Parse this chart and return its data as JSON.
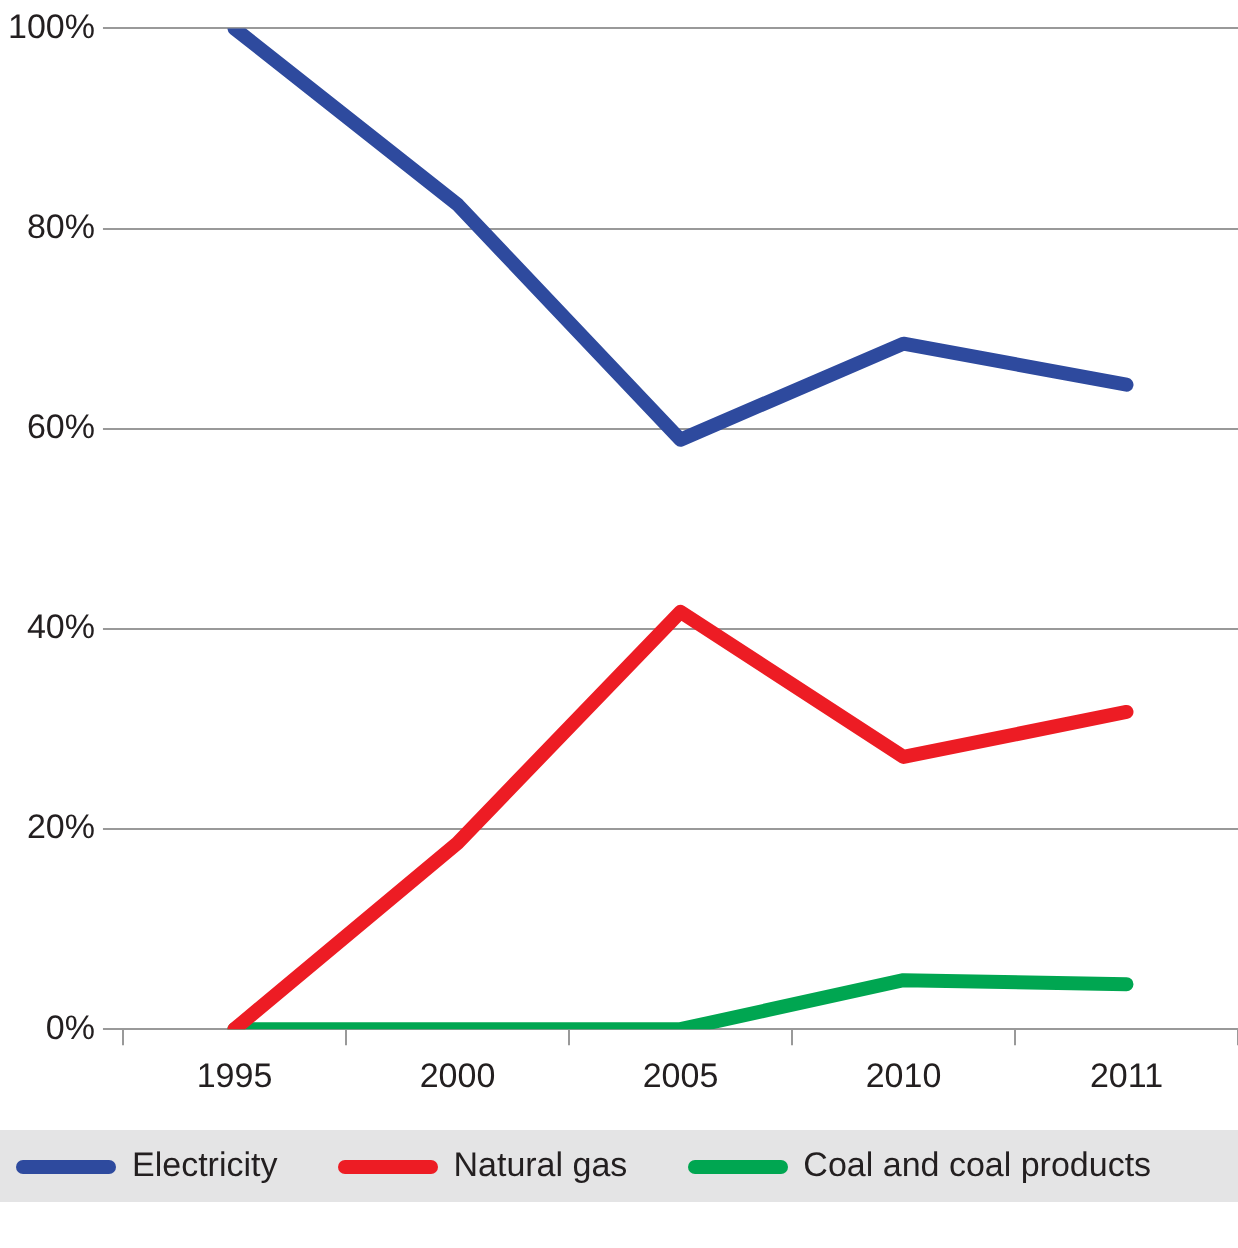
{
  "chart_data": {
    "type": "line",
    "categories": [
      "1995",
      "2000",
      "2005",
      "2010",
      "2011"
    ],
    "series": [
      {
        "name": "Electricity",
        "color": "#2e4a9e",
        "values": [
          100,
          82.4,
          58.9,
          68.5,
          64.4
        ]
      },
      {
        "name": "Natural gas",
        "color": "#ed1c24",
        "values": [
          0,
          18.6,
          41.7,
          27.2,
          31.7
        ]
      },
      {
        "name": "Coal and coal products",
        "color": "#00a651",
        "values": [
          0,
          0,
          0,
          4.9,
          4.5
        ]
      }
    ],
    "ylim": [
      0,
      100
    ],
    "yticks": [
      {
        "value": 0,
        "label": "0%"
      },
      {
        "value": 20,
        "label": "20%"
      },
      {
        "value": 40,
        "label": "40%"
      },
      {
        "value": 60,
        "label": "60%"
      },
      {
        "value": 80,
        "label": "80%"
      },
      {
        "value": 100,
        "label": "100%"
      }
    ],
    "grid": "y",
    "legend": "bottom",
    "marker": "none",
    "line_style": "solid"
  }
}
